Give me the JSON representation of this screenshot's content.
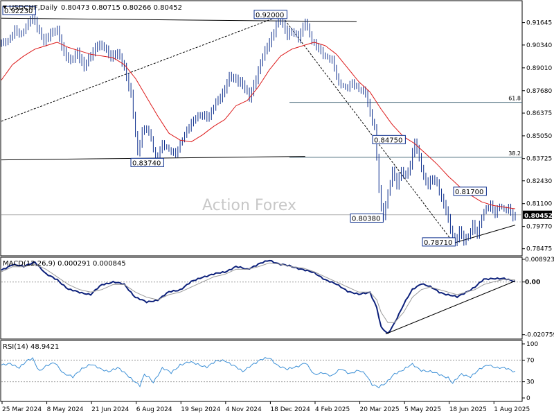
{
  "header": {
    "symbol_line": "USDCHF,Daily",
    "ohlc_line": "0.80473 0.80715 0.80266 0.80452"
  },
  "watermark": "Action Forex",
  "colors": {
    "price": "#0b2d8c",
    "sma": "#dd1a1a",
    "macd": "#0b1f7a",
    "signal": "#9a9a9a",
    "rsi": "#3b8fd6",
    "trend": "#000000",
    "fib": "#4f6f7f"
  },
  "chart_data": [
    {
      "type": "candlestick",
      "name": "price",
      "y_axis_ticks": [
        "0.91645",
        "0.90340",
        "0.89010",
        "0.87680",
        "0.86375",
        "0.85050",
        "0.83725",
        "0.82430",
        "0.81100",
        "0.79770",
        "0.78475"
      ],
      "ylim": [
        0.781,
        0.928
      ],
      "current_price_label": "0.80452",
      "current_price": 0.80452,
      "fib_levels": [
        {
          "label": "61.8",
          "value": 0.87
        },
        {
          "label": "38.2",
          "value": 0.838
        }
      ],
      "annotations": [
        {
          "text": "0.92230",
          "value": 0.9223
        },
        {
          "text": "0.92000",
          "value": 0.92
        },
        {
          "text": "0.83740",
          "value": 0.8374
        },
        {
          "text": "0.84750",
          "value": 0.8475
        },
        {
          "text": "0.80380",
          "value": 0.8038
        },
        {
          "text": "0.81700",
          "value": 0.817
        },
        {
          "text": "0.78710",
          "value": 0.7871
        }
      ],
      "price_path": [
        [
          0,
          0.905
        ],
        [
          3,
          0.906
        ],
        [
          6,
          0.913
        ],
        [
          9,
          0.909
        ],
        [
          12,
          0.916
        ],
        [
          14,
          0.9223
        ],
        [
          16,
          0.914
        ],
        [
          19,
          0.905
        ],
        [
          22,
          0.91
        ],
        [
          25,
          0.912
        ],
        [
          28,
          0.899
        ],
        [
          31,
          0.893
        ],
        [
          34,
          0.899
        ],
        [
          37,
          0.891
        ],
        [
          40,
          0.897
        ],
        [
          43,
          0.903
        ],
        [
          46,
          0.902
        ],
        [
          49,
          0.897
        ],
        [
          52,
          0.898
        ],
        [
          55,
          0.89
        ],
        [
          58,
          0.875
        ],
        [
          61,
          0.84
        ],
        [
          63,
          0.853
        ],
        [
          65,
          0.855
        ],
        [
          67,
          0.849
        ],
        [
          69,
          0.8374
        ],
        [
          72,
          0.846
        ],
        [
          75,
          0.842
        ],
        [
          78,
          0.841
        ],
        [
          81,
          0.849
        ],
        [
          84,
          0.856
        ],
        [
          87,
          0.861
        ],
        [
          90,
          0.863
        ],
        [
          93,
          0.862
        ],
        [
          96,
          0.869
        ],
        [
          99,
          0.875
        ],
        [
          102,
          0.885
        ],
        [
          105,
          0.883
        ],
        [
          108,
          0.88
        ],
        [
          111,
          0.873
        ],
        [
          114,
          0.884
        ],
        [
          117,
          0.896
        ],
        [
          120,
          0.905
        ],
        [
          122,
          0.911
        ],
        [
          124,
          0.92
        ],
        [
          126,
          0.915
        ],
        [
          128,
          0.909
        ],
        [
          130,
          0.911
        ],
        [
          133,
          0.908
        ],
        [
          136,
          0.9175
        ],
        [
          139,
          0.905
        ],
        [
          142,
          0.902
        ],
        [
          145,
          0.897
        ],
        [
          148,
          0.895
        ],
        [
          151,
          0.881
        ],
        [
          154,
          0.879
        ],
        [
          157,
          0.882
        ],
        [
          160,
          0.877
        ],
        [
          163,
          0.876
        ],
        [
          165,
          0.864
        ],
        [
          167,
          0.855
        ],
        [
          168,
          0.838
        ],
        [
          169,
          0.82
        ],
        [
          170,
          0.808
        ],
        [
          171,
          0.8038
        ],
        [
          173,
          0.816
        ],
        [
          175,
          0.83
        ],
        [
          177,
          0.823
        ],
        [
          179,
          0.83
        ],
        [
          181,
          0.826
        ],
        [
          183,
          0.833
        ],
        [
          185,
          0.847
        ],
        [
          187,
          0.838
        ],
        [
          189,
          0.826
        ],
        [
          191,
          0.822
        ],
        [
          193,
          0.825
        ],
        [
          195,
          0.822
        ],
        [
          197,
          0.814
        ],
        [
          199,
          0.808
        ],
        [
          201,
          0.796
        ],
        [
          203,
          0.7871
        ],
        [
          205,
          0.795
        ],
        [
          207,
          0.79
        ],
        [
          209,
          0.792
        ],
        [
          211,
          0.799
        ],
        [
          213,
          0.793
        ],
        [
          215,
          0.803
        ],
        [
          217,
          0.808
        ],
        [
          219,
          0.811
        ],
        [
          221,
          0.806
        ],
        [
          223,
          0.81
        ],
        [
          225,
          0.807
        ],
        [
          227,
          0.809
        ],
        [
          229,
          0.804
        ],
        [
          230,
          0.8045
        ]
      ],
      "sma_path": [
        [
          0,
          0.883
        ],
        [
          5,
          0.892
        ],
        [
          10,
          0.897
        ],
        [
          15,
          0.901
        ],
        [
          20,
          0.903
        ],
        [
          25,
          0.905
        ],
        [
          30,
          0.902
        ],
        [
          35,
          0.9
        ],
        [
          40,
          0.898
        ],
        [
          45,
          0.897
        ],
        [
          50,
          0.896
        ],
        [
          55,
          0.892
        ],
        [
          60,
          0.884
        ],
        [
          65,
          0.873
        ],
        [
          70,
          0.862
        ],
        [
          75,
          0.852
        ],
        [
          80,
          0.848
        ],
        [
          85,
          0.847
        ],
        [
          90,
          0.851
        ],
        [
          95,
          0.856
        ],
        [
          100,
          0.86
        ],
        [
          105,
          0.868
        ],
        [
          110,
          0.871
        ],
        [
          115,
          0.879
        ],
        [
          120,
          0.889
        ],
        [
          125,
          0.897
        ],
        [
          130,
          0.901
        ],
        [
          135,
          0.903
        ],
        [
          140,
          0.905
        ],
        [
          145,
          0.903
        ],
        [
          150,
          0.898
        ],
        [
          155,
          0.89
        ],
        [
          160,
          0.882
        ],
        [
          165,
          0.876
        ],
        [
          170,
          0.866
        ],
        [
          175,
          0.857
        ],
        [
          180,
          0.85
        ],
        [
          185,
          0.846
        ],
        [
          190,
          0.84
        ],
        [
          195,
          0.834
        ],
        [
          200,
          0.827
        ],
        [
          205,
          0.821
        ],
        [
          210,
          0.816
        ],
        [
          215,
          0.812
        ],
        [
          220,
          0.81
        ],
        [
          225,
          0.809
        ],
        [
          230,
          0.808
        ]
      ]
    },
    {
      "type": "line",
      "name": "MACD(12,26,9) 0.000291 0.000845",
      "y_axis_ticks": [
        "0.008923",
        "0.00",
        "-0.020759"
      ],
      "ylim": [
        -0.0222,
        0.0092
      ],
      "series": [
        {
          "name": "macd",
          "values_path": [
            [
              0,
              0.0045
            ],
            [
              5,
              0.007
            ],
            [
              10,
              0.006
            ],
            [
              15,
              0.008
            ],
            [
              20,
              0.003
            ],
            [
              25,
              0.001
            ],
            [
              30,
              -0.003
            ],
            [
              35,
              -0.004
            ],
            [
              40,
              -0.005
            ],
            [
              45,
              -0.001
            ],
            [
              50,
              0.0
            ],
            [
              55,
              -0.001
            ],
            [
              60,
              -0.006
            ],
            [
              65,
              -0.008
            ],
            [
              70,
              -0.007
            ],
            [
              75,
              -0.004
            ],
            [
              80,
              -0.003
            ],
            [
              85,
              0.0
            ],
            [
              90,
              0.002
            ],
            [
              95,
              0.003
            ],
            [
              100,
              0.004
            ],
            [
              105,
              0.006
            ],
            [
              110,
              0.005
            ],
            [
              115,
              0.007
            ],
            [
              120,
              0.0085
            ],
            [
              125,
              0.007
            ],
            [
              130,
              0.006
            ],
            [
              135,
              0.005
            ],
            [
              140,
              0.0035
            ],
            [
              145,
              0.001
            ],
            [
              150,
              -0.001
            ],
            [
              155,
              -0.0035
            ],
            [
              160,
              -0.005
            ],
            [
              165,
              -0.004
            ],
            [
              168,
              -0.01
            ],
            [
              170,
              -0.018
            ],
            [
              173,
              -0.0205
            ],
            [
              176,
              -0.016
            ],
            [
              180,
              -0.009
            ],
            [
              184,
              -0.003
            ],
            [
              188,
              -0.0005
            ],
            [
              192,
              -0.002
            ],
            [
              196,
              -0.004
            ],
            [
              200,
              -0.005
            ],
            [
              204,
              -0.006
            ],
            [
              208,
              -0.004
            ],
            [
              212,
              -0.002
            ],
            [
              216,
              0.001
            ],
            [
              220,
              0.0015
            ],
            [
              225,
              0.0012
            ],
            [
              230,
              0.0003
            ]
          ]
        },
        {
          "name": "signal",
          "values_path": [
            [
              0,
              0.004
            ],
            [
              5,
              0.006
            ],
            [
              10,
              0.006
            ],
            [
              15,
              0.007
            ],
            [
              20,
              0.005
            ],
            [
              25,
              0.002
            ],
            [
              30,
              -0.001
            ],
            [
              35,
              -0.003
            ],
            [
              40,
              -0.004
            ],
            [
              45,
              -0.003
            ],
            [
              50,
              -0.001
            ],
            [
              55,
              -0.001
            ],
            [
              60,
              -0.004
            ],
            [
              65,
              -0.006
            ],
            [
              70,
              -0.007
            ],
            [
              75,
              -0.005
            ],
            [
              80,
              -0.004
            ],
            [
              85,
              -0.002
            ],
            [
              90,
              0.0
            ],
            [
              95,
              0.002
            ],
            [
              100,
              0.003
            ],
            [
              105,
              0.005
            ],
            [
              110,
              0.005
            ],
            [
              115,
              0.006
            ],
            [
              120,
              0.0075
            ],
            [
              125,
              0.007
            ],
            [
              130,
              0.006
            ],
            [
              135,
              0.0055
            ],
            [
              140,
              0.004
            ],
            [
              145,
              0.002
            ],
            [
              150,
              0.0
            ],
            [
              155,
              -0.002
            ],
            [
              160,
              -0.004
            ],
            [
              165,
              -0.004
            ],
            [
              168,
              -0.007
            ],
            [
              170,
              -0.012
            ],
            [
              173,
              -0.016
            ],
            [
              176,
              -0.016
            ],
            [
              180,
              -0.012
            ],
            [
              184,
              -0.006
            ],
            [
              188,
              -0.003
            ],
            [
              192,
              -0.002
            ],
            [
              196,
              -0.003
            ],
            [
              200,
              -0.004
            ],
            [
              204,
              -0.005
            ],
            [
              208,
              -0.004
            ],
            [
              212,
              -0.003
            ],
            [
              216,
              -0.001
            ],
            [
              220,
              0.0
            ],
            [
              225,
              0.001
            ],
            [
              230,
              0.0008
            ]
          ]
        }
      ],
      "zero_line": 0
    },
    {
      "type": "line",
      "name": "RSI(14) 48.9421",
      "y_axis_ticks": [
        "100",
        "70",
        "30",
        "0"
      ],
      "ylim": [
        0,
        100
      ],
      "levels": [
        70,
        30
      ],
      "values_path": [
        [
          0,
          60
        ],
        [
          4,
          65
        ],
        [
          8,
          55
        ],
        [
          12,
          70
        ],
        [
          14,
          74
        ],
        [
          17,
          50
        ],
        [
          20,
          58
        ],
        [
          24,
          66
        ],
        [
          28,
          45
        ],
        [
          32,
          38
        ],
        [
          36,
          55
        ],
        [
          40,
          62
        ],
        [
          44,
          54
        ],
        [
          48,
          50
        ],
        [
          52,
          55
        ],
        [
          56,
          44
        ],
        [
          60,
          30
        ],
        [
          62,
          22
        ],
        [
          64,
          42
        ],
        [
          66,
          38
        ],
        [
          68,
          30
        ],
        [
          72,
          55
        ],
        [
          76,
          46
        ],
        [
          80,
          62
        ],
        [
          84,
          66
        ],
        [
          88,
          62
        ],
        [
          92,
          58
        ],
        [
          96,
          67
        ],
        [
          100,
          70
        ],
        [
          104,
          60
        ],
        [
          108,
          48
        ],
        [
          112,
          62
        ],
        [
          116,
          70
        ],
        [
          120,
          74
        ],
        [
          124,
          60
        ],
        [
          128,
          52
        ],
        [
          132,
          58
        ],
        [
          136,
          66
        ],
        [
          140,
          42
        ],
        [
          144,
          48
        ],
        [
          148,
          40
        ],
        [
          152,
          54
        ],
        [
          156,
          46
        ],
        [
          160,
          50
        ],
        [
          163,
          44
        ],
        [
          166,
          26
        ],
        [
          169,
          20
        ],
        [
          172,
          26
        ],
        [
          176,
          46
        ],
        [
          180,
          52
        ],
        [
          184,
          62
        ],
        [
          188,
          52
        ],
        [
          192,
          48
        ],
        [
          196,
          44
        ],
        [
          200,
          38
        ],
        [
          202,
          27
        ],
        [
          206,
          44
        ],
        [
          210,
          40
        ],
        [
          214,
          52
        ],
        [
          218,
          62
        ],
        [
          222,
          56
        ],
        [
          226,
          54
        ],
        [
          230,
          49
        ]
      ]
    }
  ],
  "x_axis_labels": [
    "25 Mar 2024",
    "8 May 2024",
    "21 Jun 2024",
    "6 Aug 2024",
    "19 Sep 2024",
    "4 Nov 2024",
    "18 Dec 2024",
    "4 Feb 2025",
    "20 Mar 2025",
    "5 May 2025",
    "18 Jun 2025",
    "1 Aug 2025"
  ]
}
